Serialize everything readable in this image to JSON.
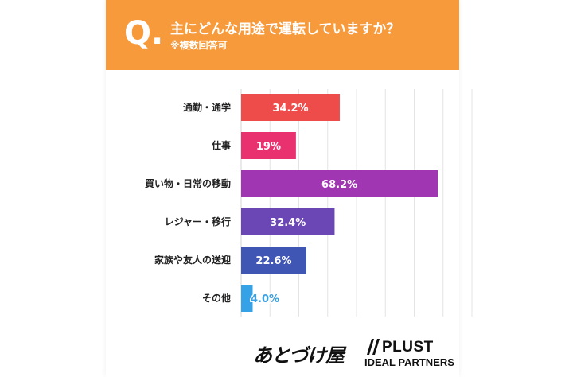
{
  "header": {
    "q_mark": "Q.",
    "question": "主にどんな用途で運転していますか？",
    "note": "※複数回答可"
  },
  "colors": {
    "header_bg": "#F79A3B",
    "bars": [
      "#EE4B4B",
      "#E8316E",
      "#A136B3",
      "#6B46B5",
      "#3F56B4",
      "#35A2E8"
    ],
    "gridline": "#E4E4E4"
  },
  "chart_data": {
    "type": "bar",
    "orientation": "horizontal",
    "categories": [
      "通勤・通学",
      "仕事",
      "買い物・日常の移動",
      "レジャー・移行",
      "家族や友人の送迎",
      "その他"
    ],
    "values": [
      34.2,
      19,
      68.2,
      32.4,
      22.6,
      4.0
    ],
    "value_labels": [
      "34.2%",
      "19%",
      "68.2%",
      "32.4%",
      "22.6%",
      "4.0%"
    ],
    "xlim": [
      0,
      80
    ],
    "grid": true,
    "title": "",
    "xlabel": "",
    "ylabel": ""
  },
  "logos": {
    "left_text": "あとづけ屋",
    "right_main": "PLUST",
    "right_sub": "IDEAL PARTNERS"
  }
}
